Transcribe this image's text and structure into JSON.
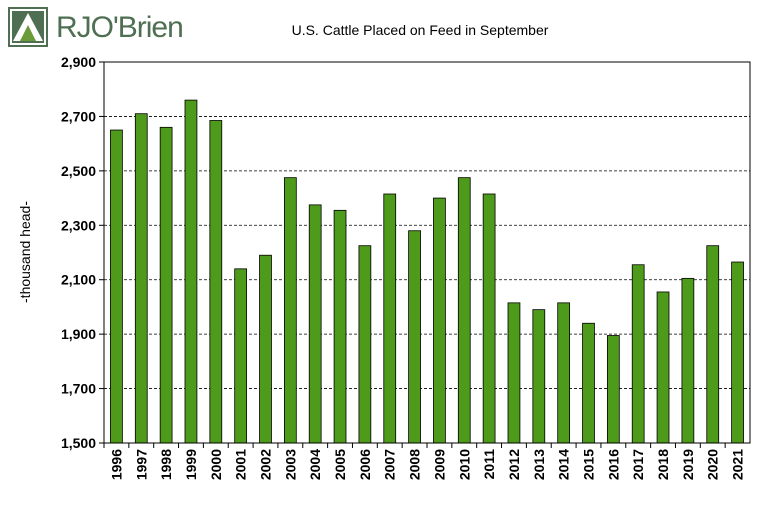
{
  "brand": {
    "name": "RJO'Brien"
  },
  "chart_data": {
    "type": "bar",
    "title": "U.S. Cattle Placed on Feed in September",
    "ylabel": "-thousand head-",
    "xlabel": "",
    "ylim": [
      1500,
      2900
    ],
    "yticks": [
      1500,
      1700,
      1900,
      2100,
      2300,
      2500,
      2700,
      2900
    ],
    "ytick_labels": [
      "1,500",
      "1,700",
      "1,900",
      "2,100",
      "2,300",
      "2,500",
      "2,700",
      "2,900"
    ],
    "grid": "horizontal dashed",
    "bar_color": "#4e9a1a",
    "categories": [
      "1996",
      "1997",
      "1998",
      "1999",
      "2000",
      "2001",
      "2002",
      "2003",
      "2004",
      "2005",
      "2006",
      "2007",
      "2008",
      "2009",
      "2010",
      "2011",
      "2012",
      "2013",
      "2014",
      "2015",
      "2016",
      "2017",
      "2018",
      "2019",
      "2020",
      "2021"
    ],
    "values": [
      2650,
      2710,
      2660,
      2760,
      2685,
      2140,
      2190,
      2475,
      2375,
      2355,
      2225,
      2415,
      2280,
      2400,
      2475,
      2415,
      2015,
      1990,
      2015,
      1940,
      1895,
      2155,
      2055,
      2105,
      2225,
      2165
    ]
  }
}
